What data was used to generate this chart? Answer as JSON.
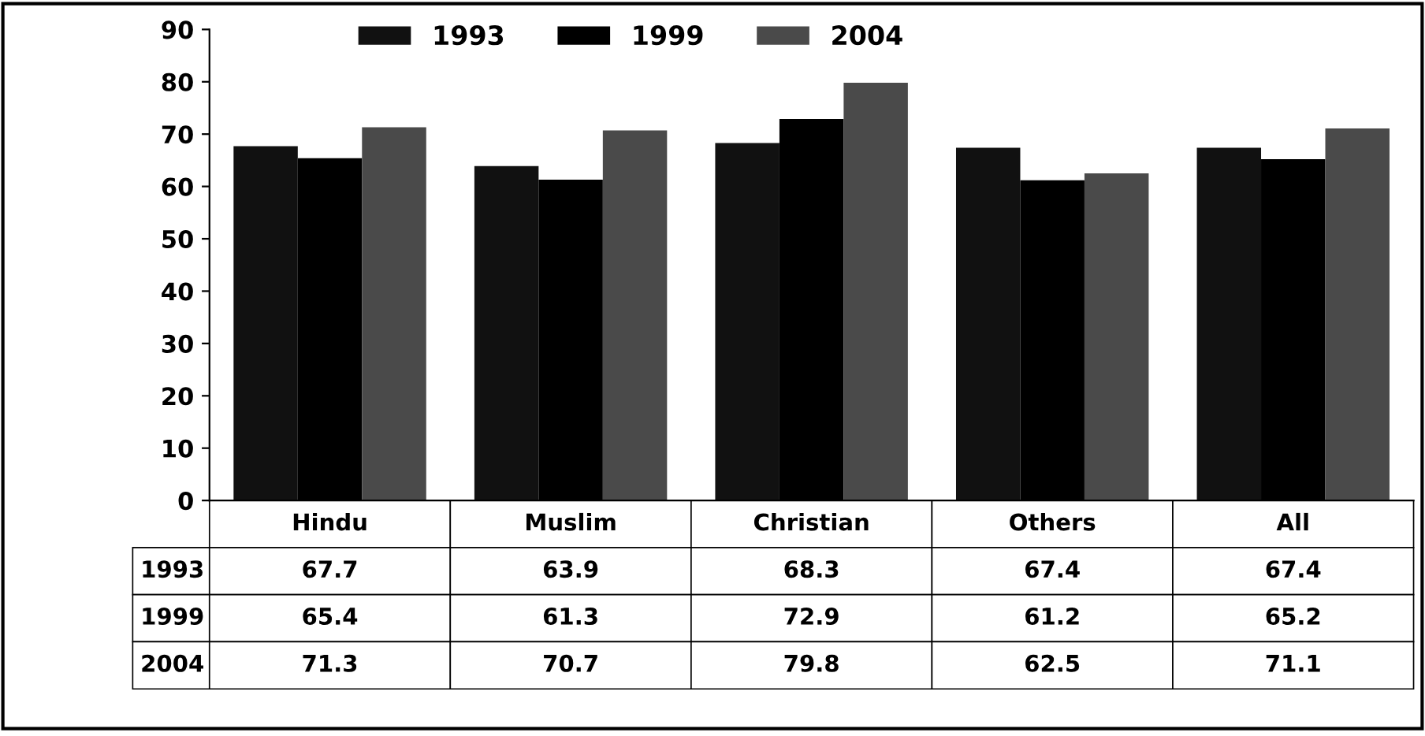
{
  "chart_data": {
    "type": "bar",
    "categories": [
      "Hindu",
      "Muslim",
      "Christian",
      "Others",
      "All"
    ],
    "series": [
      {
        "name": "1993",
        "color": "#111111",
        "values": [
          67.7,
          63.9,
          68.3,
          67.4,
          67.4
        ]
      },
      {
        "name": "1999",
        "color": "#000000",
        "values": [
          65.4,
          61.3,
          72.9,
          61.2,
          65.2
        ]
      },
      {
        "name": "2004",
        "color": "#4a4a4a",
        "values": [
          71.3,
          70.7,
          79.8,
          62.5,
          71.1
        ]
      }
    ],
    "ylim": [
      0,
      90
    ],
    "yticks": [
      0,
      10,
      20,
      30,
      40,
      50,
      60,
      70,
      80,
      90
    ],
    "grid": false,
    "legend": "top",
    "data_labels": true
  }
}
